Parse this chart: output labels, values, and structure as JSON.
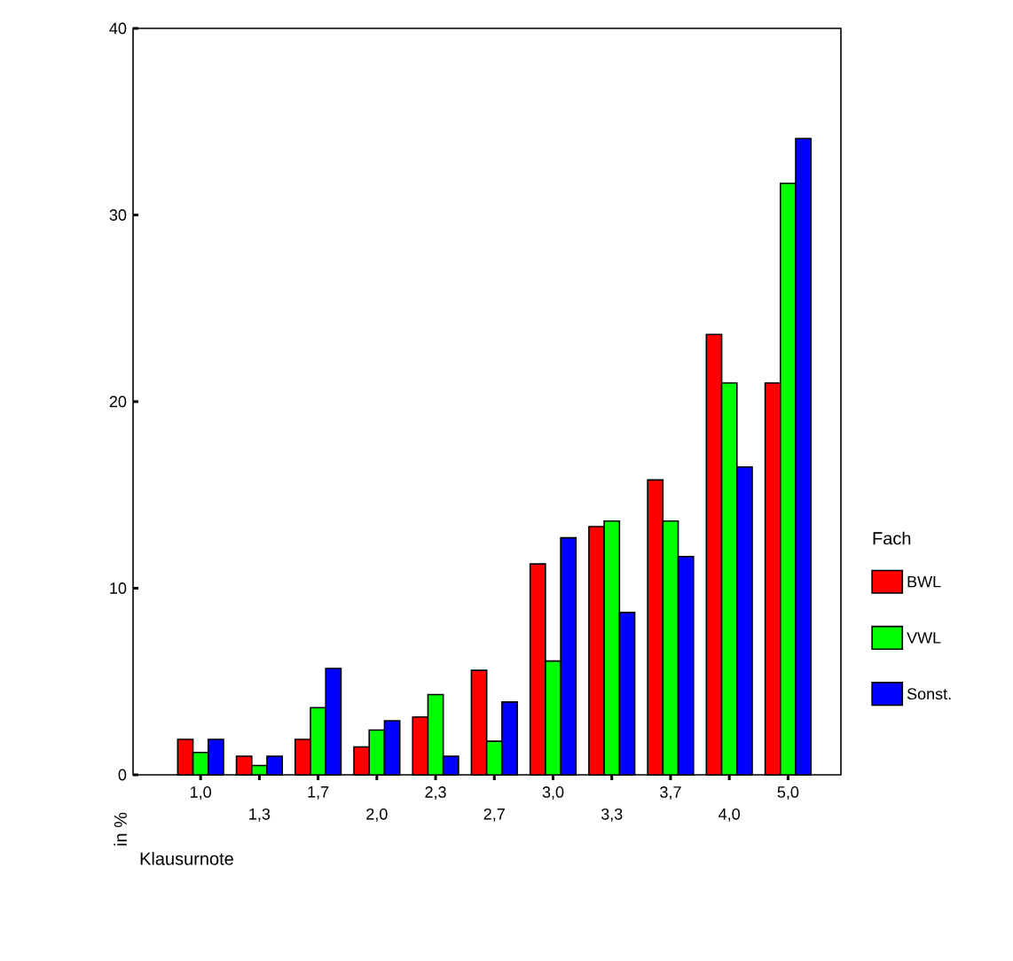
{
  "chart_data": {
    "type": "bar",
    "xlabel": "Klausurnote",
    "ylabel": "in %",
    "legend_title": "Fach",
    "legend": "right",
    "categories": [
      "1,0",
      "1,3",
      "1,7",
      "2,0",
      "2,3",
      "2,7",
      "3,0",
      "3,3",
      "3,7",
      "4,0",
      "5,0"
    ],
    "series": [
      {
        "name": "BWL",
        "color": "#ff0000",
        "values": [
          1.9,
          1.0,
          1.9,
          1.5,
          3.1,
          5.6,
          11.3,
          13.3,
          15.8,
          23.6,
          21.0
        ]
      },
      {
        "name": "VWL",
        "color": "#00ff00",
        "values": [
          1.2,
          0.5,
          3.6,
          2.4,
          4.3,
          1.8,
          6.1,
          13.6,
          13.6,
          21.0,
          31.7
        ]
      },
      {
        "name": "Sonst.",
        "color": "#0000ff",
        "values": [
          1.9,
          1.0,
          5.7,
          2.9,
          1.0,
          3.9,
          12.7,
          8.7,
          11.7,
          16.5,
          34.1
        ]
      }
    ],
    "ylim": [
      0,
      40
    ],
    "yticks": [
      0,
      10,
      20,
      30,
      40
    ]
  }
}
